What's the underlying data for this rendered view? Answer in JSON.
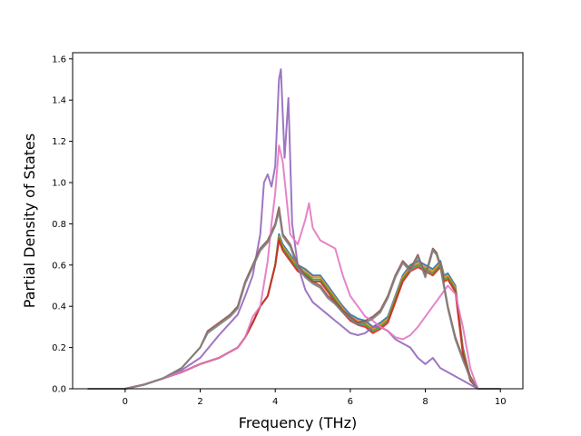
{
  "chart_data": {
    "type": "line",
    "title": "",
    "xlabel": "Frequency (THz)",
    "ylabel": "Partial Density of States",
    "xlim": [
      -1.4,
      10.6
    ],
    "ylim": [
      0.0,
      1.63
    ],
    "xticks": [
      0,
      2,
      4,
      6,
      8,
      10
    ],
    "xtick_labels": [
      "0",
      "2",
      "4",
      "6",
      "8",
      "10"
    ],
    "yticks": [
      0.0,
      0.2,
      0.4,
      0.6,
      0.8,
      1.0,
      1.2,
      1.4,
      1.6
    ],
    "ytick_labels": [
      "0.0",
      "0.2",
      "0.4",
      "0.6",
      "0.8",
      "1.0",
      "1.2",
      "1.4",
      "1.6"
    ],
    "grid": false,
    "legend": "none",
    "series": [
      {
        "color": "#1f77b4",
        "x": [
          -1.0,
          0.0,
          0.5,
          1.0,
          1.5,
          2.0,
          2.5,
          3.0,
          3.2,
          3.4,
          3.6,
          3.8,
          4.0,
          4.1,
          4.2,
          4.4,
          4.6,
          4.8,
          5.0,
          5.2,
          5.4,
          5.6,
          5.8,
          6.0,
          6.2,
          6.4,
          6.6,
          6.8,
          7.0,
          7.2,
          7.4,
          7.6,
          7.8,
          8.0,
          8.2,
          8.4,
          8.5,
          8.6,
          8.8,
          9.0,
          9.2,
          9.4,
          10.0
        ],
        "y": [
          0.0,
          0.0,
          0.02,
          0.05,
          0.08,
          0.12,
          0.15,
          0.2,
          0.25,
          0.32,
          0.4,
          0.45,
          0.6,
          0.75,
          0.7,
          0.65,
          0.6,
          0.58,
          0.55,
          0.55,
          0.5,
          0.45,
          0.4,
          0.36,
          0.34,
          0.33,
          0.3,
          0.32,
          0.35,
          0.45,
          0.55,
          0.6,
          0.62,
          0.6,
          0.58,
          0.62,
          0.55,
          0.56,
          0.5,
          0.2,
          0.05,
          0.0,
          0.0
        ]
      },
      {
        "color": "#ff7f0e",
        "x": [
          -1.0,
          0.0,
          0.5,
          1.0,
          1.5,
          2.0,
          2.5,
          3.0,
          3.2,
          3.4,
          3.6,
          3.8,
          4.0,
          4.1,
          4.2,
          4.4,
          4.6,
          4.8,
          5.0,
          5.2,
          5.4,
          5.6,
          5.8,
          6.0,
          6.2,
          6.4,
          6.6,
          6.8,
          7.0,
          7.2,
          7.4,
          7.6,
          7.8,
          8.0,
          8.2,
          8.4,
          8.5,
          8.6,
          8.8,
          9.0,
          9.2,
          9.4,
          10.0
        ],
        "y": [
          0.0,
          0.0,
          0.02,
          0.05,
          0.08,
          0.12,
          0.15,
          0.2,
          0.25,
          0.32,
          0.4,
          0.45,
          0.6,
          0.74,
          0.69,
          0.64,
          0.59,
          0.57,
          0.54,
          0.54,
          0.49,
          0.44,
          0.39,
          0.35,
          0.33,
          0.32,
          0.29,
          0.31,
          0.34,
          0.44,
          0.54,
          0.59,
          0.61,
          0.59,
          0.57,
          0.61,
          0.54,
          0.55,
          0.49,
          0.19,
          0.05,
          0.0,
          0.0
        ]
      },
      {
        "color": "#2ca02c",
        "x": [
          -1.0,
          0.0,
          0.5,
          1.0,
          1.5,
          2.0,
          2.5,
          3.0,
          3.2,
          3.4,
          3.6,
          3.8,
          4.0,
          4.1,
          4.2,
          4.4,
          4.6,
          4.8,
          5.0,
          5.2,
          5.4,
          5.6,
          5.8,
          6.0,
          6.2,
          6.4,
          6.6,
          6.8,
          7.0,
          7.2,
          7.4,
          7.6,
          7.8,
          8.0,
          8.2,
          8.4,
          8.5,
          8.6,
          8.8,
          9.0,
          9.2,
          9.4,
          10.0
        ],
        "y": [
          0.0,
          0.0,
          0.02,
          0.05,
          0.08,
          0.12,
          0.15,
          0.2,
          0.25,
          0.32,
          0.4,
          0.45,
          0.6,
          0.73,
          0.68,
          0.63,
          0.58,
          0.56,
          0.53,
          0.53,
          0.48,
          0.43,
          0.38,
          0.34,
          0.32,
          0.31,
          0.28,
          0.3,
          0.33,
          0.43,
          0.53,
          0.58,
          0.6,
          0.58,
          0.56,
          0.6,
          0.53,
          0.54,
          0.48,
          0.18,
          0.04,
          0.0,
          0.0
        ]
      },
      {
        "color": "#d62728",
        "x": [
          -1.0,
          0.0,
          0.5,
          1.0,
          1.5,
          2.0,
          2.5,
          3.0,
          3.2,
          3.4,
          3.6,
          3.8,
          4.0,
          4.1,
          4.2,
          4.4,
          4.6,
          4.8,
          5.0,
          5.2,
          5.4,
          5.6,
          5.8,
          6.0,
          6.2,
          6.4,
          6.6,
          6.8,
          7.0,
          7.2,
          7.4,
          7.6,
          7.8,
          8.0,
          8.2,
          8.4,
          8.5,
          8.6,
          8.8,
          9.0,
          9.2,
          9.4,
          10.0
        ],
        "y": [
          0.0,
          0.0,
          0.02,
          0.05,
          0.08,
          0.12,
          0.15,
          0.2,
          0.25,
          0.32,
          0.4,
          0.45,
          0.6,
          0.72,
          0.67,
          0.62,
          0.57,
          0.55,
          0.52,
          0.52,
          0.47,
          0.42,
          0.37,
          0.33,
          0.31,
          0.3,
          0.27,
          0.29,
          0.32,
          0.42,
          0.52,
          0.57,
          0.59,
          0.57,
          0.55,
          0.59,
          0.52,
          0.53,
          0.47,
          0.17,
          0.04,
          0.0,
          0.0
        ]
      },
      {
        "color": "#9467bd",
        "x": [
          -1.0,
          0.0,
          0.5,
          1.0,
          1.5,
          2.0,
          2.5,
          3.0,
          3.2,
          3.4,
          3.6,
          3.7,
          3.8,
          3.9,
          4.0,
          4.1,
          4.15,
          4.25,
          4.35,
          4.45,
          4.6,
          4.8,
          5.0,
          5.2,
          5.4,
          5.6,
          5.8,
          6.0,
          6.2,
          6.4,
          6.6,
          6.8,
          7.0,
          7.2,
          7.4,
          7.6,
          7.8,
          8.0,
          8.2,
          8.4,
          8.6,
          8.8,
          9.0,
          9.2,
          9.4,
          10.0
        ],
        "y": [
          0.0,
          0.0,
          0.02,
          0.05,
          0.09,
          0.15,
          0.26,
          0.36,
          0.45,
          0.55,
          0.75,
          1.0,
          1.04,
          0.98,
          1.08,
          1.5,
          1.55,
          1.12,
          1.41,
          0.8,
          0.6,
          0.48,
          0.42,
          0.39,
          0.36,
          0.33,
          0.3,
          0.27,
          0.26,
          0.27,
          0.3,
          0.3,
          0.28,
          0.24,
          0.22,
          0.2,
          0.15,
          0.12,
          0.15,
          0.1,
          0.08,
          0.06,
          0.04,
          0.02,
          0.0,
          0.0
        ]
      },
      {
        "color": "#8c564b",
        "x": [
          -1.0,
          0.0,
          0.5,
          1.0,
          1.5,
          2.0,
          2.2,
          2.5,
          2.8,
          3.0,
          3.2,
          3.4,
          3.6,
          3.8,
          4.0,
          4.1,
          4.2,
          4.4,
          4.6,
          4.8,
          5.0,
          5.2,
          5.4,
          5.6,
          5.8,
          6.0,
          6.2,
          6.4,
          6.6,
          6.8,
          7.0,
          7.2,
          7.4,
          7.6,
          7.8,
          8.0,
          8.2,
          8.3,
          8.4,
          8.6,
          8.8,
          9.0,
          9.2,
          9.4,
          10.0
        ],
        "y": [
          0.0,
          0.0,
          0.02,
          0.05,
          0.1,
          0.2,
          0.28,
          0.32,
          0.36,
          0.4,
          0.52,
          0.6,
          0.68,
          0.72,
          0.8,
          0.88,
          0.75,
          0.7,
          0.6,
          0.55,
          0.52,
          0.5,
          0.45,
          0.42,
          0.38,
          0.35,
          0.32,
          0.33,
          0.35,
          0.38,
          0.45,
          0.55,
          0.62,
          0.58,
          0.65,
          0.55,
          0.68,
          0.66,
          0.6,
          0.4,
          0.25,
          0.15,
          0.06,
          0.0,
          0.0
        ]
      },
      {
        "color": "#e377c2",
        "x": [
          -1.0,
          0.0,
          0.5,
          1.0,
          1.5,
          2.0,
          2.5,
          3.0,
          3.2,
          3.4,
          3.6,
          3.8,
          3.9,
          4.0,
          4.1,
          4.2,
          4.4,
          4.6,
          4.8,
          4.9,
          5.0,
          5.2,
          5.4,
          5.6,
          5.8,
          6.0,
          6.2,
          6.4,
          6.6,
          6.8,
          7.0,
          7.2,
          7.4,
          7.6,
          7.8,
          8.0,
          8.2,
          8.4,
          8.6,
          8.8,
          9.0,
          9.2,
          9.4,
          10.0
        ],
        "y": [
          0.0,
          0.0,
          0.02,
          0.05,
          0.08,
          0.12,
          0.15,
          0.2,
          0.25,
          0.35,
          0.4,
          0.62,
          0.8,
          0.95,
          1.18,
          1.1,
          0.75,
          0.7,
          0.82,
          0.9,
          0.78,
          0.72,
          0.7,
          0.68,
          0.55,
          0.45,
          0.4,
          0.35,
          0.33,
          0.3,
          0.28,
          0.25,
          0.24,
          0.26,
          0.3,
          0.35,
          0.4,
          0.45,
          0.5,
          0.46,
          0.3,
          0.1,
          0.0,
          0.0
        ]
      },
      {
        "color": "#7f7f7f",
        "x": [
          -1.0,
          0.0,
          0.5,
          1.0,
          1.5,
          2.0,
          2.2,
          2.5,
          2.8,
          3.0,
          3.2,
          3.4,
          3.6,
          3.8,
          4.0,
          4.1,
          4.2,
          4.4,
          4.6,
          4.8,
          5.0,
          5.2,
          5.4,
          5.6,
          5.8,
          6.0,
          6.2,
          6.4,
          6.6,
          6.8,
          7.0,
          7.2,
          7.4,
          7.6,
          7.8,
          8.0,
          8.2,
          8.3,
          8.4,
          8.6,
          8.8,
          9.0,
          9.2,
          9.4,
          10.0
        ],
        "y": [
          0.0,
          0.0,
          0.02,
          0.05,
          0.1,
          0.2,
          0.27,
          0.31,
          0.35,
          0.39,
          0.51,
          0.59,
          0.67,
          0.71,
          0.79,
          0.86,
          0.74,
          0.69,
          0.59,
          0.54,
          0.51,
          0.49,
          0.44,
          0.41,
          0.37,
          0.34,
          0.31,
          0.32,
          0.34,
          0.37,
          0.44,
          0.54,
          0.61,
          0.57,
          0.64,
          0.54,
          0.67,
          0.65,
          0.59,
          0.39,
          0.24,
          0.14,
          0.05,
          0.0,
          0.0
        ]
      }
    ]
  }
}
